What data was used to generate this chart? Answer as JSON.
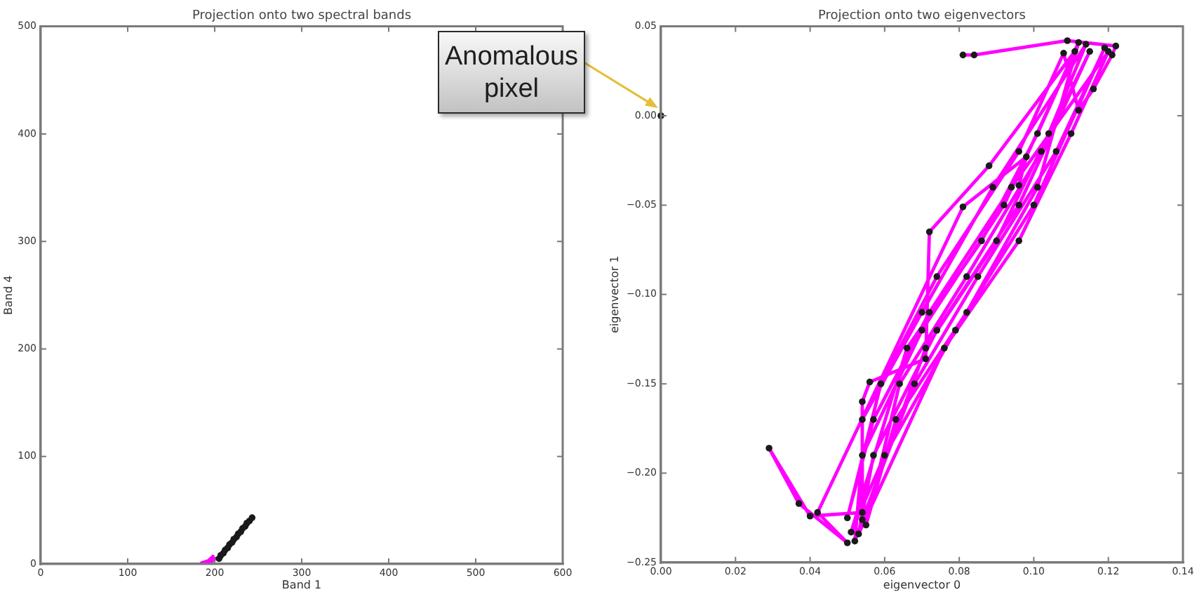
{
  "chart_data": [
    {
      "type": "line",
      "title": "Projection onto two spectral bands",
      "xlabel": "Band 1",
      "ylabel": "Band 4",
      "xlim": [
        0,
        600
      ],
      "ylim": [
        0,
        500
      ],
      "xticks": [
        0,
        100,
        200,
        300,
        400,
        500,
        600
      ],
      "yticks": [
        0,
        100,
        200,
        300,
        400,
        500
      ],
      "grid": false,
      "legend": false,
      "series": [
        {
          "type": "line",
          "marker": "none",
          "color": "#ff00ff",
          "x": [
            185,
            193,
            198,
            190,
            201,
            196
          ],
          "values": [
            1,
            3,
            7,
            1,
            5,
            2
          ]
        },
        {
          "type": "scatter",
          "marker": "circle",
          "color": "#1a1a1a",
          "x": [
            205,
            207,
            210,
            212,
            215,
            217,
            220,
            222,
            225,
            227,
            230,
            232,
            235,
            237,
            240,
            243
          ],
          "values": [
            5,
            8,
            10,
            13,
            15,
            18,
            20,
            23,
            25,
            28,
            30,
            33,
            35,
            38,
            40,
            43
          ]
        }
      ]
    },
    {
      "type": "line",
      "title": "Projection onto two eigenvectors",
      "xlabel": "eigenvector 0",
      "ylabel": "eigenvector 1",
      "xlim": [
        0,
        0.14
      ],
      "ylim": [
        -0.25,
        0.05
      ],
      "xticks": [
        {
          "value": 0,
          "label": "0.00"
        },
        {
          "value": 0.02,
          "label": "0.02"
        },
        {
          "value": 0.04,
          "label": "0.04"
        },
        {
          "value": 0.06,
          "label": "0.06"
        },
        {
          "value": 0.08,
          "label": "0.08"
        },
        {
          "value": 0.1,
          "label": "0.10"
        },
        {
          "value": 0.12,
          "label": "0.12"
        },
        {
          "value": 0.14,
          "label": "0.14"
        }
      ],
      "yticks": [
        {
          "value": -0.25,
          "label": "−0.25"
        },
        {
          "value": -0.2,
          "label": "−0.20"
        },
        {
          "value": -0.15,
          "label": "−0.15"
        },
        {
          "value": -0.1,
          "label": "−0.10"
        },
        {
          "value": -0.05,
          "label": "−0.05"
        },
        {
          "value": 0,
          "label": "0.00"
        },
        {
          "value": 0.05,
          "label": "0.05"
        }
      ],
      "grid": false,
      "legend": false,
      "annotations": [
        "Anomalous pixel"
      ],
      "series": [
        {
          "type": "line",
          "marker": "none",
          "color": "#ff00ff",
          "x": [
            0.081,
            0.084,
            0.109,
            0.122,
            0.121,
            0.116,
            0.112,
            0.108,
            0.096,
            0.074,
            0.059,
            0.05,
            0.057,
            0.072,
            0.094,
            0.12,
            0.11,
            0.096,
            0.076,
            0.053,
            0.057,
            0.074,
            0.096,
            0.115,
            0.102,
            0.082,
            0.064,
            0.055,
            0.063,
            0.082,
            0.101,
            0.112,
            0.101,
            0.086,
            0.066,
            0.051,
            0.06,
            0.079,
            0.1,
            0.119,
            0.106,
            0.085,
            0.068,
            0.054,
            0.054,
            0.07,
            0.089,
            0.114,
            0.104,
            0.09,
            0.071,
            0.052,
            0.054,
            0.07,
            0.092,
            0.111,
            0.088,
            0.072,
            0.071,
            0.056,
            0.054,
            0.054,
            0.04,
            0.029,
            0.037,
            0.05,
            0.042,
            0.081,
            0.098,
            0.096
          ],
          "values": [
            0.034,
            0.034,
            0.042,
            0.039,
            0.034,
            0.015,
            0.003,
            0.035,
            -0.02,
            -0.09,
            -0.15,
            -0.225,
            -0.17,
            -0.11,
            -0.04,
            0.036,
            -0.01,
            -0.07,
            -0.13,
            -0.234,
            -0.19,
            -0.12,
            -0.05,
            0.036,
            -0.02,
            -0.09,
            -0.15,
            -0.229,
            -0.17,
            -0.11,
            -0.04,
            0.041,
            -0.01,
            -0.07,
            -0.13,
            -0.233,
            -0.19,
            -0.12,
            -0.05,
            0.038,
            -0.02,
            -0.09,
            -0.15,
            -0.226,
            -0.17,
            -0.11,
            -0.04,
            0.04,
            -0.01,
            -0.07,
            -0.13,
            -0.238,
            -0.19,
            -0.12,
            -0.05,
            0.036,
            -0.028,
            -0.065,
            -0.136,
            -0.149,
            -0.16,
            -0.222,
            -0.224,
            -0.186,
            -0.217,
            -0.239,
            -0.222,
            -0.051,
            -0.023,
            -0.039
          ]
        },
        {
          "type": "scatter",
          "marker": "circle",
          "color": "#1a1a1a",
          "x": [
            0,
            0.081,
            0.084,
            0.109,
            0.122,
            0.121,
            0.116,
            0.112,
            0.108,
            0.096,
            0.074,
            0.059,
            0.05,
            0.057,
            0.072,
            0.094,
            0.12,
            0.11,
            0.096,
            0.076,
            0.053,
            0.057,
            0.074,
            0.096,
            0.115,
            0.102,
            0.082,
            0.064,
            0.055,
            0.063,
            0.082,
            0.101,
            0.112,
            0.101,
            0.086,
            0.066,
            0.051,
            0.06,
            0.079,
            0.1,
            0.119,
            0.106,
            0.085,
            0.068,
            0.054,
            0.054,
            0.07,
            0.089,
            0.114,
            0.104,
            0.09,
            0.071,
            0.052,
            0.054,
            0.07,
            0.092,
            0.111,
            0.088,
            0.072,
            0.071,
            0.056,
            0.054,
            0.054,
            0.04,
            0.029,
            0.037,
            0.05,
            0.042,
            0.081,
            0.098,
            0.096
          ],
          "values": [
            0,
            0.034,
            0.034,
            0.042,
            0.039,
            0.034,
            0.015,
            0.003,
            0.035,
            -0.02,
            -0.09,
            -0.15,
            -0.225,
            -0.17,
            -0.11,
            -0.04,
            0.036,
            -0.01,
            -0.07,
            -0.13,
            -0.234,
            -0.19,
            -0.12,
            -0.05,
            0.036,
            -0.02,
            -0.09,
            -0.15,
            -0.229,
            -0.17,
            -0.11,
            -0.04,
            0.041,
            -0.01,
            -0.07,
            -0.13,
            -0.233,
            -0.19,
            -0.12,
            -0.05,
            0.038,
            -0.02,
            -0.09,
            -0.15,
            -0.226,
            -0.17,
            -0.11,
            -0.04,
            0.04,
            -0.01,
            -0.07,
            -0.13,
            -0.238,
            -0.19,
            -0.12,
            -0.05,
            0.036,
            -0.028,
            -0.065,
            -0.136,
            -0.149,
            -0.16,
            -0.222,
            -0.224,
            -0.186,
            -0.217,
            -0.239,
            -0.222,
            -0.051,
            -0.023,
            -0.039
          ]
        }
      ]
    }
  ]
}
